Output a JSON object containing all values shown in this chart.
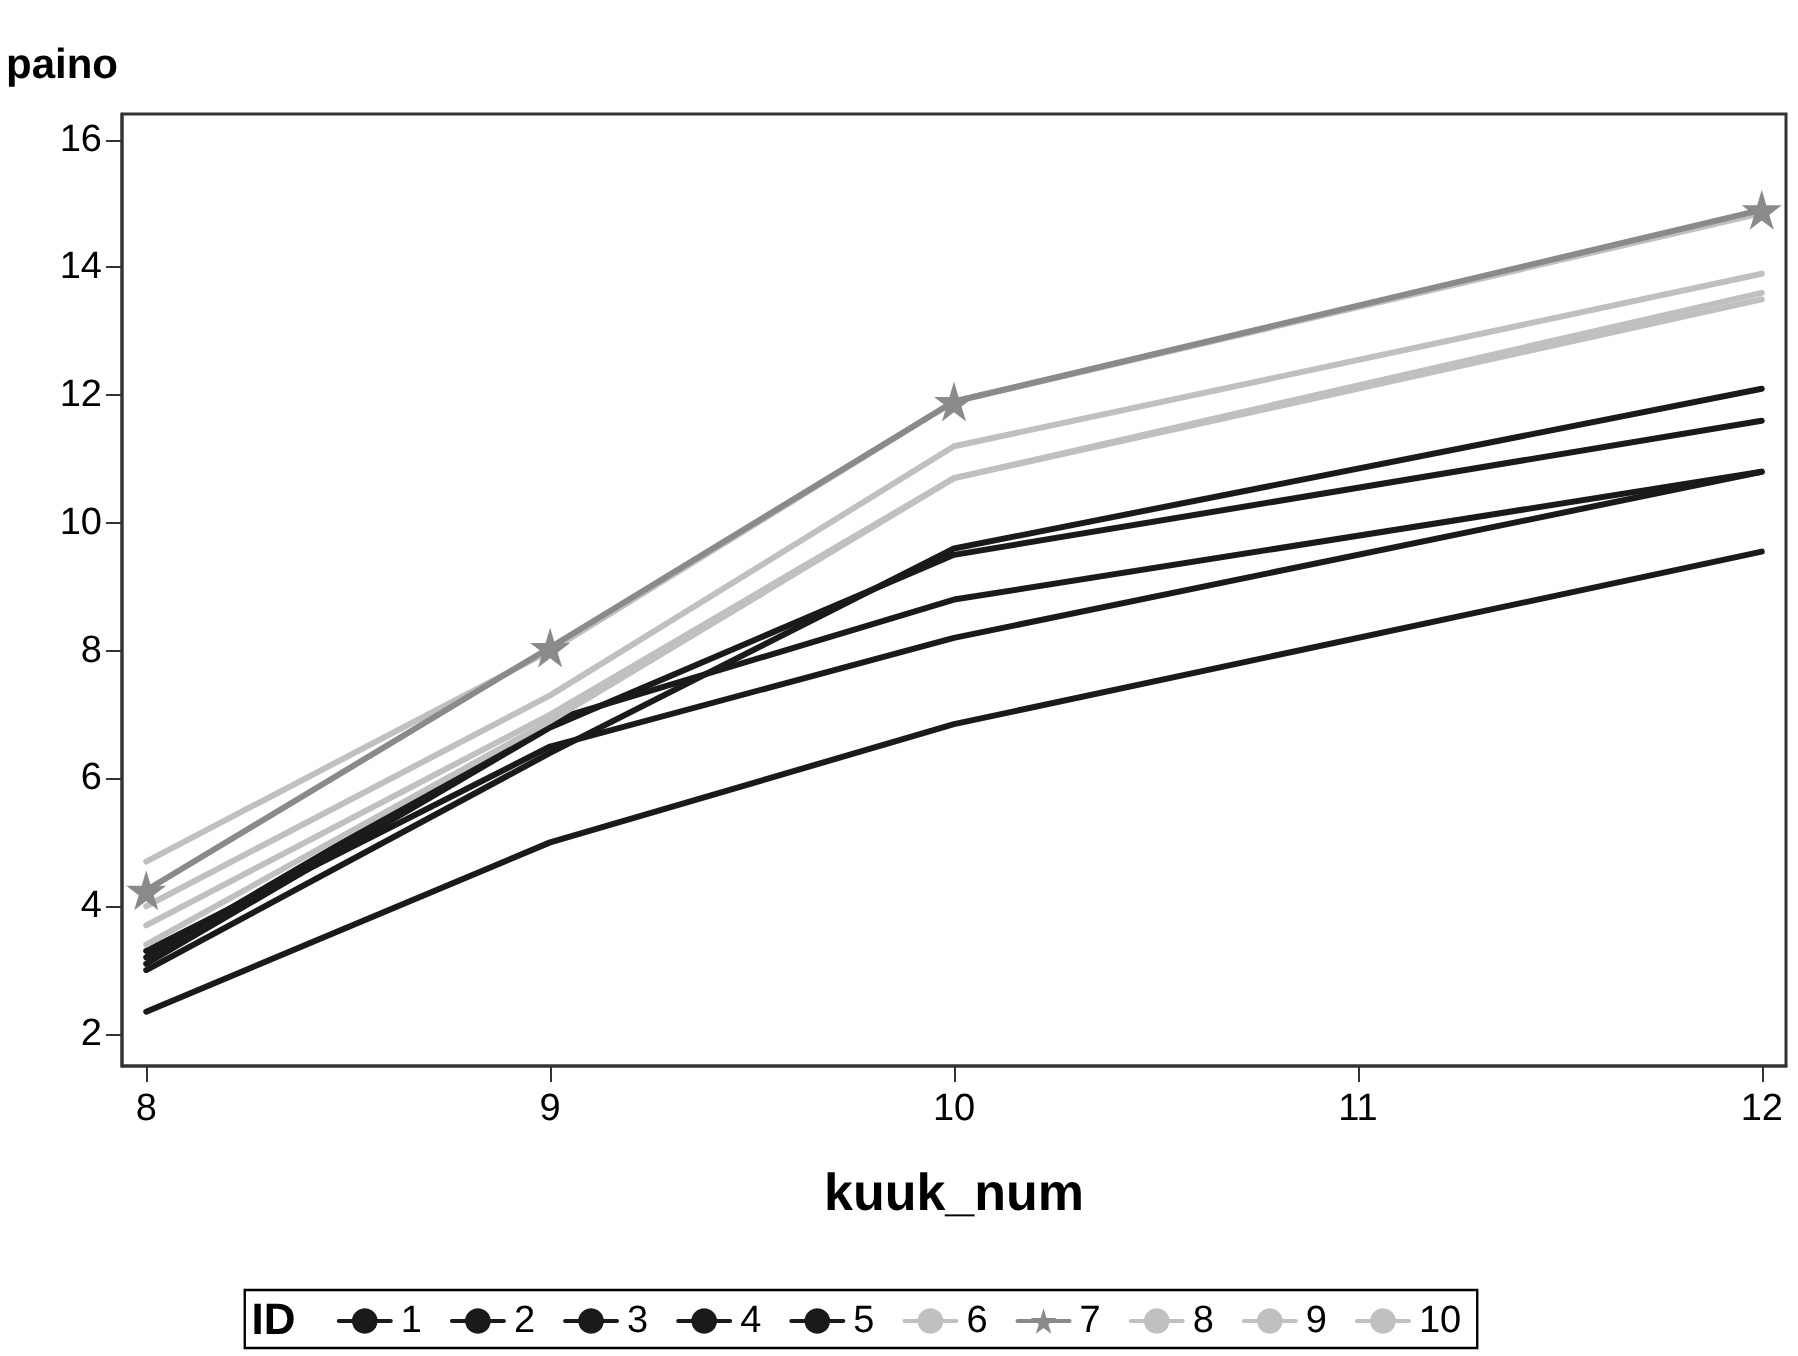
{
  "chart_data": {
    "type": "line",
    "ylabel": "paino",
    "xlabel": "kuuk_num",
    "legend_title": "ID",
    "x": [
      8,
      9,
      10,
      12
    ],
    "xlim": [
      7.94,
      12.06
    ],
    "ylim": [
      1.5,
      16.4
    ],
    "xticks": [
      8,
      9,
      10,
      11,
      12
    ],
    "yticks": [
      2,
      4,
      6,
      8,
      10,
      12,
      14,
      16
    ],
    "grid": false,
    "legend": "bottom",
    "marker": "none",
    "line_style": "solid",
    "series": [
      {
        "name": "1",
        "color": "#1a1a1a",
        "values": [
          3.0,
          6.4,
          9.6,
          12.1
        ]
      },
      {
        "name": "2",
        "color": "#1a1a1a",
        "values": [
          3.1,
          6.8,
          9.5,
          11.6
        ]
      },
      {
        "name": "3",
        "color": "#1a1a1a",
        "values": [
          3.2,
          6.9,
          8.8,
          10.8
        ]
      },
      {
        "name": "4",
        "color": "#1a1a1a",
        "values": [
          3.3,
          6.5,
          8.2,
          10.8
        ]
      },
      {
        "name": "5",
        "color": "#1a1a1a",
        "values": [
          2.35,
          5.0,
          6.85,
          9.55
        ]
      },
      {
        "name": "6",
        "color": "#c0c0c0",
        "values": [
          4.7,
          8.0,
          11.9,
          14.85
        ]
      },
      {
        "name": "7",
        "color": "#8a8a8a",
        "marker": "star",
        "values": [
          4.25,
          8.05,
          11.9,
          14.9
        ]
      },
      {
        "name": "8",
        "color": "#c0c0c0",
        "values": [
          4.0,
          7.3,
          11.2,
          13.9
        ]
      },
      {
        "name": "9",
        "color": "#c0c0c0",
        "values": [
          3.7,
          7.0,
          10.7,
          13.6
        ]
      },
      {
        "name": "10",
        "color": "#c0c0c0",
        "values": [
          3.4,
          6.9,
          10.7,
          13.5
        ]
      }
    ]
  }
}
